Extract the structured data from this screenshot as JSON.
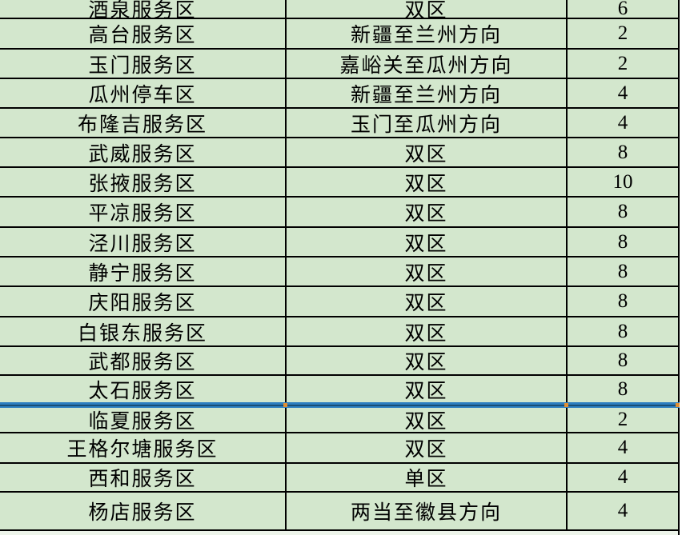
{
  "app": {
    "view": "spreadsheet-table",
    "description_visible_content": "service area allocation table"
  },
  "colors": {
    "cell_fill": "#d3e7cd",
    "grid_line": "#000000",
    "page_break_blue": "#2d7fc1",
    "page_break_dark": "#194e76",
    "page_break_handle_orange": "#e08f33",
    "text": "#000000"
  },
  "table": {
    "rows": [
      {
        "name": "酒泉服务区",
        "direction": "双区",
        "count": "6"
      },
      {
        "name": "高台服务区",
        "direction": "新疆至兰州方向",
        "count": "2"
      },
      {
        "name": "玉门服务区",
        "direction": "嘉峪关至瓜州方向",
        "count": "2"
      },
      {
        "name": "瓜州停车区",
        "direction": "新疆至兰州方向",
        "count": "4"
      },
      {
        "name": "布隆吉服务区",
        "direction": "玉门至瓜州方向",
        "count": "4"
      },
      {
        "name": "武威服务区",
        "direction": "双区",
        "count": "8"
      },
      {
        "name": "张掖服务区",
        "direction": "双区",
        "count": "10"
      },
      {
        "name": "平凉服务区",
        "direction": "双区",
        "count": "8"
      },
      {
        "name": "泾川服务区",
        "direction": "双区",
        "count": "8"
      },
      {
        "name": "静宁服务区",
        "direction": "双区",
        "count": "8"
      },
      {
        "name": "庆阳服务区",
        "direction": "双区",
        "count": "8"
      },
      {
        "name": "白银东服务区",
        "direction": "双区",
        "count": "8"
      },
      {
        "name": "武都服务区",
        "direction": "双区",
        "count": "8"
      },
      {
        "name": "太石服务区",
        "direction": "双区",
        "count": "8"
      },
      {
        "name": "临夏服务区",
        "direction": "双区",
        "count": "2"
      },
      {
        "name": "王格尔塘服务区",
        "direction": "双区",
        "count": "4"
      },
      {
        "name": "西和服务区",
        "direction": "单区",
        "count": "4"
      },
      {
        "name": "杨店服务区",
        "direction": "两当至徽县方向",
        "count": "4"
      }
    ],
    "page_break_after_row_index": 13
  }
}
